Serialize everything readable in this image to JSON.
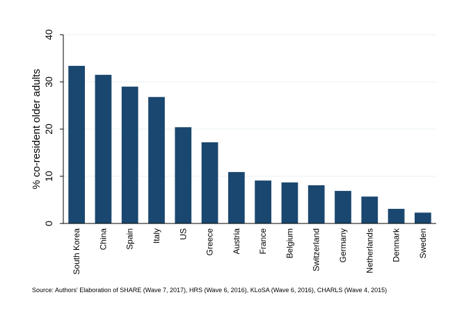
{
  "chart_data": {
    "type": "bar",
    "categories": [
      "South Korea",
      "China",
      "Spain",
      "Italy",
      "US",
      "Greece",
      "Austria",
      "France",
      "Belgium",
      "Switzerland",
      "Germany",
      "Netherlands",
      "Denmark",
      "Sweden"
    ],
    "values": [
      33.4,
      31.5,
      29.0,
      26.8,
      20.4,
      17.2,
      10.9,
      9.1,
      8.7,
      8.1,
      6.9,
      5.7,
      3.1,
      2.3
    ],
    "title": "",
    "xlabel": "",
    "ylabel": "% co-resident older adults",
    "ylim": [
      0,
      40
    ],
    "yticks": [
      0,
      10,
      20,
      30,
      40
    ],
    "grid": true,
    "bar_color": "#1a476f",
    "grid_color": "#eaf2f3"
  },
  "note": {
    "source": "Source: Authors' Elaboration of SHARE (Wave 7, 2017), HRS (Wave 6, 2016), KLoSA (Wave 6, 2016), CHARLS (Wave 4, 2015)"
  }
}
